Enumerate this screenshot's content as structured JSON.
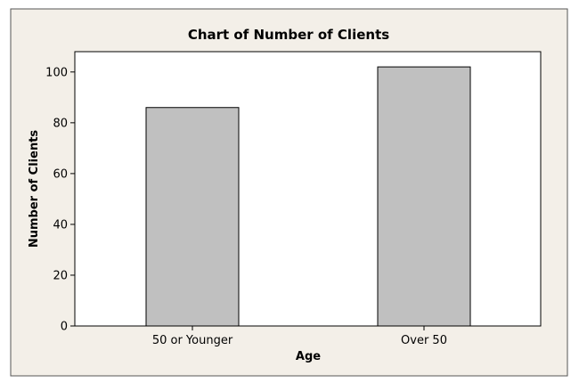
{
  "chart_data": {
    "type": "bar",
    "title": "Chart of Number of Clients",
    "xlabel": "Age",
    "ylabel": "Number of Clients",
    "categories": [
      "50 or Younger",
      "Over 50"
    ],
    "values": [
      86,
      102
    ],
    "ylim": [
      0,
      108
    ],
    "yticks": [
      "0",
      "20",
      "40",
      "60",
      "80",
      "100"
    ],
    "grid": false
  },
  "colors": {
    "figure_background": "#f3efe8",
    "plot_background": "#ffffff",
    "bar_fill": "#c0c0c0",
    "bar_stroke": "#000000"
  }
}
